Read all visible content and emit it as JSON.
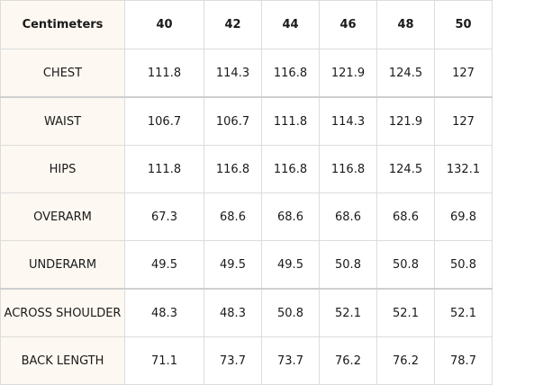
{
  "table": {
    "corner_label": "Centimeters",
    "sizes": [
      "40",
      "42",
      "44",
      "46",
      "48",
      "50"
    ],
    "rows": [
      {
        "label": "CHEST",
        "values": [
          "111.8",
          "114.3",
          "116.8",
          "121.9",
          "124.5",
          "127"
        ]
      },
      {
        "label": "WAIST",
        "values": [
          "106.7",
          "106.7",
          "111.8",
          "114.3",
          "121.9",
          "127"
        ]
      },
      {
        "label": "HIPS",
        "values": [
          "111.8",
          "116.8",
          "116.8",
          "116.8",
          "124.5",
          "132.1"
        ]
      },
      {
        "label": "OVERARM",
        "values": [
          "67.3",
          "68.6",
          "68.6",
          "68.6",
          "68.6",
          "69.8"
        ]
      },
      {
        "label": "UNDERARM",
        "values": [
          "49.5",
          "49.5",
          "49.5",
          "50.8",
          "50.8",
          "50.8"
        ]
      },
      {
        "label": "ACROSS SHOULDER",
        "values": [
          "48.3",
          "48.3",
          "50.8",
          "52.1",
          "52.1",
          "52.1"
        ]
      },
      {
        "label": "BACK LENGTH",
        "values": [
          "71.1",
          "73.7",
          "73.7",
          "76.2",
          "76.2",
          "78.7"
        ]
      }
    ]
  },
  "colors": {
    "label_background": "#fdf8f1",
    "border": "#dcdcdc",
    "text": "#1a1a1a"
  }
}
